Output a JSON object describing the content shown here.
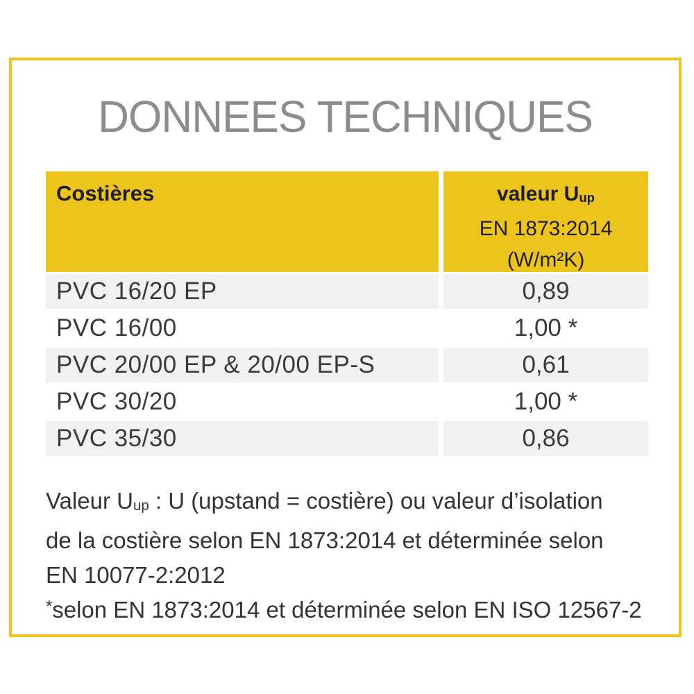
{
  "colors": {
    "frame_border": "#F2C51D",
    "header_background": "#ECC41C",
    "row_alt_background": "#F1F1F1",
    "title_color": "#8C8C8C",
    "body_text_color": "#333333"
  },
  "title": "DONNEES TECHNIQUES",
  "table": {
    "header": {
      "col1": "Costières",
      "col2": {
        "line1_prefix": "valeur U",
        "line1_sub": "up",
        "line2": "EN 1873:2014",
        "line3": "(W/m²K)"
      }
    },
    "rows": [
      {
        "label": "PVC 16/20 EP",
        "value": "0,89"
      },
      {
        "label": "PVC 16/00",
        "value": "1,00 *"
      },
      {
        "label": "PVC 20/00 EP & 20/00 EP-S",
        "value": "0,61"
      },
      {
        "label": "PVC 30/20",
        "value": "1,00 *"
      },
      {
        "label": "PVC 35/30",
        "value": "0,86"
      }
    ]
  },
  "footnote": {
    "line1_prefix": "Valeur U",
    "line1_sub": "up",
    "line1_rest": " : U (upstand = costière) ou valeur d’isolation",
    "line2": "de la costière selon EN 1873:2014 et déterminée selon",
    "line3": "EN 10077-2:2012",
    "line4_sup": "*",
    "line4_rest": "selon EN 1873:2014 et déterminée selon EN ISO 12567-2"
  }
}
